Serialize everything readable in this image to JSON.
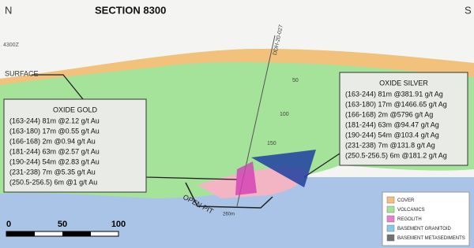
{
  "header": {
    "left": "N",
    "right": "S",
    "title": "SECTION 8300"
  },
  "labels": {
    "elevation": "4300Z",
    "surface": "SURFACE",
    "drillhole": "DDH-20-027",
    "depth_ticks": [
      "50",
      "100",
      "150"
    ],
    "open_pit": "OPEN PIT",
    "depth": "260m"
  },
  "oxide_gold": {
    "title": "OXIDE GOLD",
    "rows": [
      "(163-244) 81m @2.12 g/t Au",
      "(163-180) 17m @0.55 g/t Au",
      "(166-168) 2m @0.94 g/t Au",
      "(181-244) 63m @2.57 g/t Au",
      "(190-244) 54m @2.83 g/t Au",
      "(231-238) 7m @5.35 g/t Au",
      "(250.5-256.5) 6m @1 g/t Au"
    ]
  },
  "oxide_silver": {
    "title": "OXIDE SILVER",
    "rows": [
      "(163-244) 81m @381.91 g/t Ag",
      "(163-180) 17m @1466.65 g/t Ag",
      "(166-168) 2m @5796 g/t Ag",
      "(181-244) 63m @94.47 g/t Ag",
      "(190-244) 54m @103.4 g/t Ag",
      "(231-238) 7m @131.8 g/t Ag",
      "(250.5-256.5) 6m @181.2 g/t Ag"
    ]
  },
  "legend": [
    {
      "label": "COVER",
      "color": "#f2c27c"
    },
    {
      "label": "VOLCANICS",
      "color": "#a6e39a"
    },
    {
      "label": "REGOLITH",
      "color": "#e87fd0"
    },
    {
      "label": "BASEMENT GRANITOID",
      "color": "#86c9ea"
    },
    {
      "label": "BASEMENT METASEDIMENTS",
      "color": "#707070"
    }
  ],
  "scale": [
    "0",
    "50",
    "100"
  ]
}
